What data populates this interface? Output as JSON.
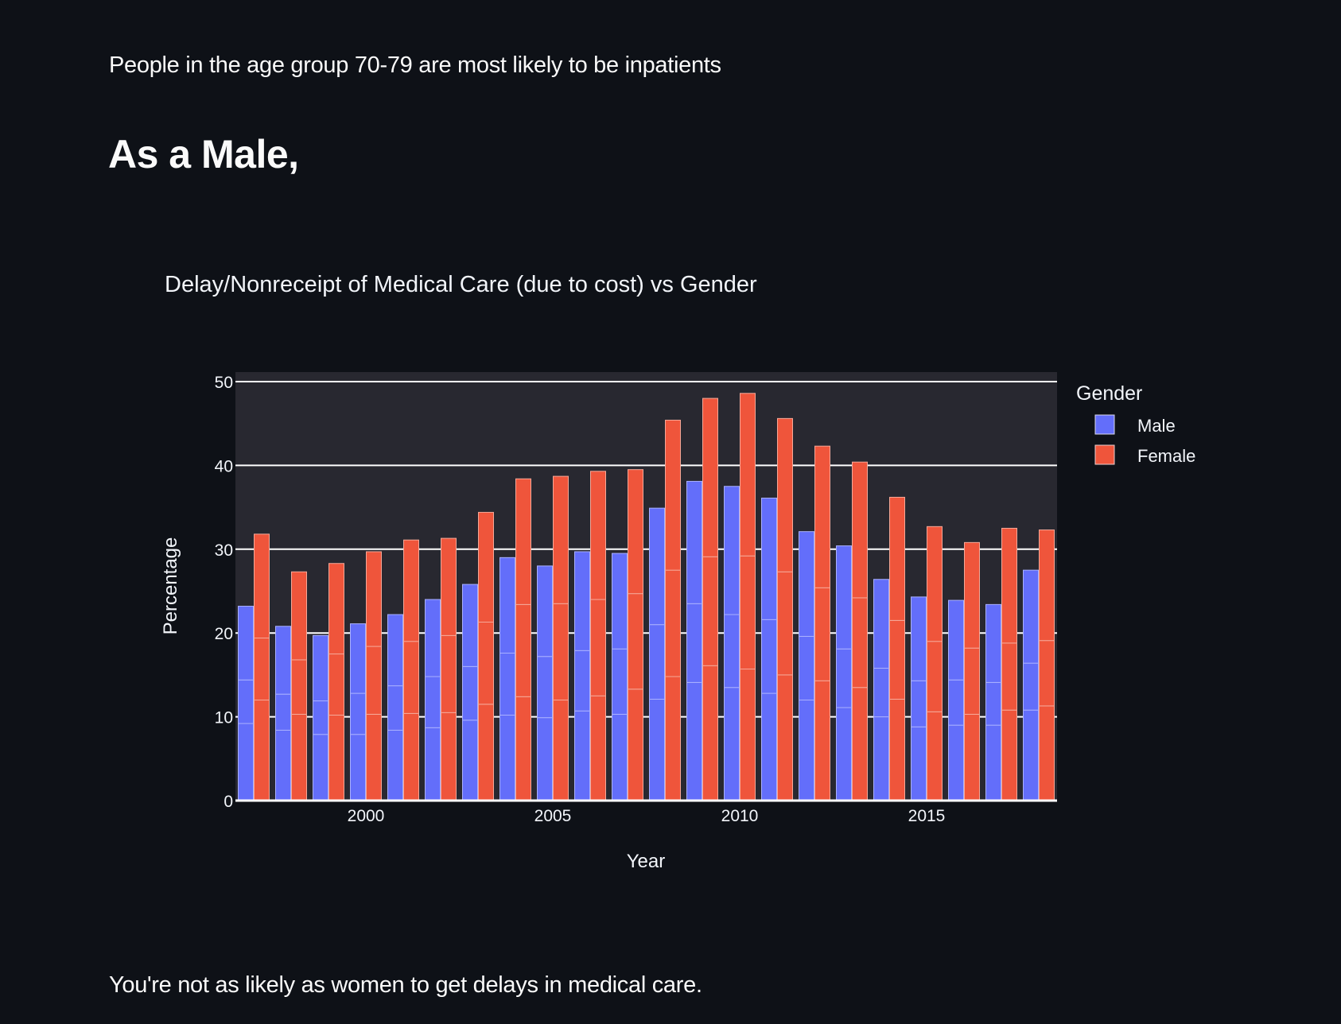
{
  "page": {
    "intro_text": "People in the age group 70-79 are most likely to be inpatients",
    "heading": "As a Male,",
    "footer_text": "You're not as likely as women to get delays in medical care."
  },
  "colors": {
    "background": "#0e1117",
    "plot_background": "#282830",
    "male": "#636efa",
    "female": "#ef553b",
    "text": "#f2f5fa",
    "grid": "#ffffff"
  },
  "chart_data": {
    "type": "bar",
    "barmode": "group (each bar stacked from 3 segments)",
    "title": "Delay/Nonreceipt of Medical Care (due to cost) vs Gender",
    "xlabel": "Year",
    "ylabel": "Percentage",
    "ylim": [
      0,
      51
    ],
    "yticks": [
      "0",
      "10",
      "20",
      "30",
      "40",
      "50"
    ],
    "ytick_values": [
      0,
      10,
      20,
      30,
      40,
      50
    ],
    "xticks": [
      "2000",
      "2005",
      "2010",
      "2015"
    ],
    "xtick_values": [
      2000,
      2005,
      2010,
      2015
    ],
    "grid": true,
    "legend": {
      "title": "Gender",
      "position": "right",
      "entries": [
        "Male",
        "Female"
      ]
    },
    "categories": [
      1997,
      1998,
      1999,
      2000,
      2001,
      2002,
      2003,
      2004,
      2005,
      2006,
      2007,
      2008,
      2009,
      2010,
      2011,
      2012,
      2013,
      2014,
      2015,
      2016,
      2017,
      2018
    ],
    "series": [
      {
        "name": "Male",
        "values": [
          23.2,
          20.8,
          19.7,
          21.1,
          22.2,
          24.0,
          25.8,
          29.0,
          28.0,
          29.7,
          29.5,
          34.9,
          38.1,
          37.5,
          36.1,
          32.1,
          30.4,
          26.4,
          24.3,
          23.9,
          23.4,
          27.5
        ],
        "segment_boundaries": [
          [
            9.2,
            14.4
          ],
          [
            8.4,
            12.7
          ],
          [
            7.9,
            11.9
          ],
          [
            7.9,
            12.8
          ],
          [
            8.4,
            13.7
          ],
          [
            8.7,
            14.8
          ],
          [
            9.6,
            16.0
          ],
          [
            10.2,
            17.6
          ],
          [
            9.9,
            17.2
          ],
          [
            10.7,
            17.9
          ],
          [
            10.3,
            18.1
          ],
          [
            12.1,
            21.0
          ],
          [
            14.1,
            23.5
          ],
          [
            13.5,
            22.2
          ],
          [
            12.8,
            21.6
          ],
          [
            12.0,
            19.6
          ],
          [
            11.1,
            18.1
          ],
          [
            10.0,
            15.8
          ],
          [
            8.8,
            14.3
          ],
          [
            9.0,
            14.4
          ],
          [
            9.0,
            14.1
          ],
          [
            10.8,
            16.4
          ]
        ]
      },
      {
        "name": "Female",
        "values": [
          31.8,
          27.3,
          28.3,
          29.7,
          31.1,
          31.3,
          34.4,
          38.4,
          38.7,
          39.3,
          39.5,
          45.4,
          48.0,
          48.6,
          45.6,
          42.3,
          40.4,
          36.2,
          32.7,
          30.8,
          32.5,
          32.3
        ],
        "segment_boundaries": [
          [
            12.0,
            19.4
          ],
          [
            10.3,
            16.8
          ],
          [
            10.2,
            17.5
          ],
          [
            10.3,
            18.4
          ],
          [
            10.4,
            19.0
          ],
          [
            10.5,
            19.7
          ],
          [
            11.5,
            21.3
          ],
          [
            12.4,
            23.4
          ],
          [
            12.0,
            23.5
          ],
          [
            12.5,
            24.0
          ],
          [
            13.3,
            24.7
          ],
          [
            14.8,
            27.5
          ],
          [
            16.1,
            29.1
          ],
          [
            15.7,
            29.2
          ],
          [
            15.0,
            27.3
          ],
          [
            14.3,
            25.4
          ],
          [
            13.5,
            24.2
          ],
          [
            12.1,
            21.5
          ],
          [
            10.6,
            19.0
          ],
          [
            10.3,
            18.2
          ],
          [
            10.8,
            18.8
          ],
          [
            11.3,
            19.1
          ]
        ]
      }
    ]
  }
}
